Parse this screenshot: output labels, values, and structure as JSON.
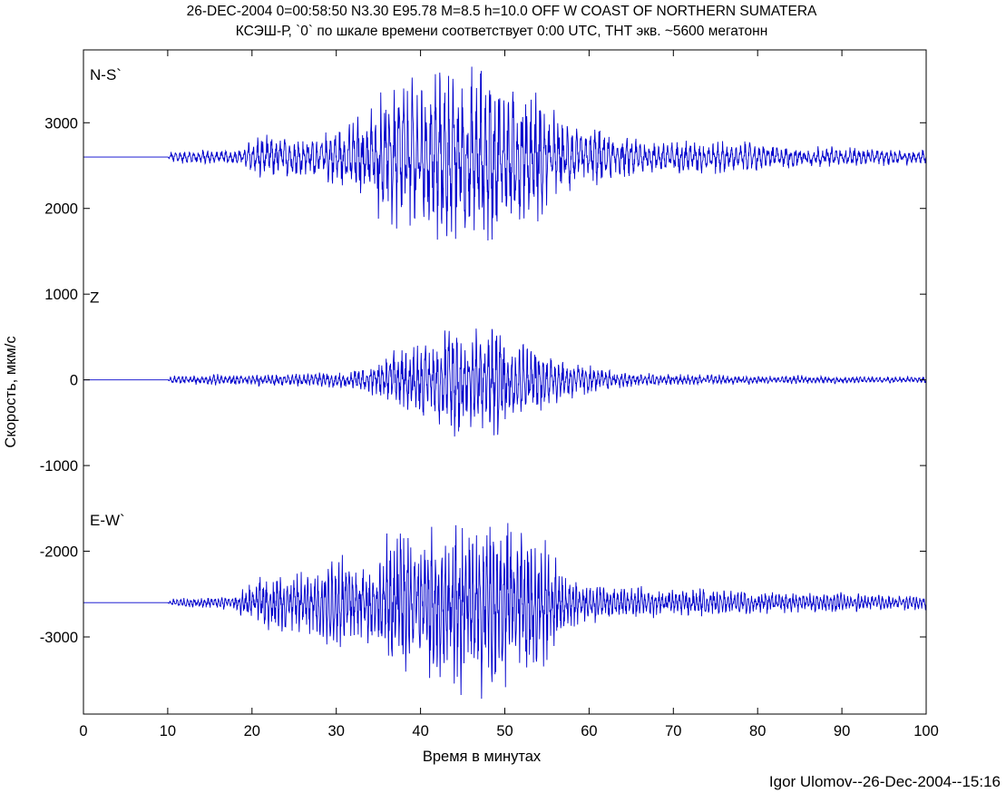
{
  "chart_data": {
    "type": "line",
    "title": "26-DEC-2004 0=00:58:50 N3.30 E95.78 M=8.5 h=10.0 OFF W COAST OF NORTHERN SUMATERA",
    "subtitle": "КСЭШ-Р, `0` по шкале времени соответствует 0:00 UTC, ТНТ экв. ~5600 мегатонн",
    "xlabel": "Время в минутах",
    "ylabel": "Скорость, мкм/с",
    "credit": "Igor Ulomov--26-Dec-2004--15:16",
    "xlim": [
      0,
      100
    ],
    "ylim": [
      -3900,
      3850
    ],
    "xticks": [
      0,
      10,
      20,
      30,
      40,
      50,
      60,
      70,
      80,
      90,
      100
    ],
    "yticks": [
      -3000,
      -2000,
      -1000,
      0,
      1000,
      2000,
      3000
    ],
    "grid": false,
    "line_color": "#0000cc",
    "series": [
      {
        "name": "N-S`",
        "offset": 2600,
        "envelope_minutes": [
          0,
          10,
          10.5,
          18,
          19,
          21,
          24,
          28,
          31,
          33,
          34.5,
          36,
          37,
          38,
          41,
          43,
          44,
          46,
          48,
          49,
          51,
          52,
          54,
          55,
          57,
          60,
          61,
          62,
          65,
          70,
          75,
          80,
          85,
          90,
          95,
          100
        ],
        "envelope_amplitude": [
          0,
          0,
          90,
          100,
          180,
          320,
          280,
          320,
          470,
          580,
          760,
          930,
          1090,
          1140,
          1100,
          1250,
          1300,
          1200,
          1260,
          1150,
          1050,
          950,
          860,
          820,
          520,
          330,
          450,
          300,
          270,
          230,
          220,
          200,
          150,
          140,
          120,
          110
        ]
      },
      {
        "name": "Z",
        "offset": 0,
        "envelope_minutes": [
          0,
          10,
          10.5,
          20,
          25,
          30,
          33,
          34,
          35,
          36,
          37,
          38,
          39,
          41,
          42,
          43,
          44,
          46,
          48,
          49,
          50,
          51,
          52,
          54,
          55,
          56,
          58,
          60,
          62,
          65,
          70,
          80,
          90,
          100
        ],
        "envelope_amplitude": [
          0,
          0,
          60,
          80,
          90,
          120,
          180,
          200,
          270,
          340,
          400,
          430,
          470,
          520,
          600,
          800,
          850,
          700,
          860,
          900,
          700,
          640,
          530,
          460,
          400,
          330,
          270,
          210,
          150,
          110,
          80,
          60,
          50,
          40
        ]
      },
      {
        "name": "E-W`",
        "offset": -2600,
        "envelope_minutes": [
          0,
          10,
          10.5,
          18,
          19.5,
          21,
          24,
          27,
          29,
          30,
          33,
          35,
          36,
          37,
          38,
          40,
          42,
          44,
          46,
          48,
          50,
          51,
          53,
          55,
          57,
          60,
          62,
          65,
          70,
          75,
          80,
          85,
          90,
          95,
          100
        ],
        "envelope_amplitude": [
          0,
          0,
          60,
          90,
          280,
          360,
          400,
          450,
          550,
          700,
          580,
          620,
          880,
          1200,
          1200,
          850,
          1200,
          1200,
          1200,
          1200,
          1200,
          1200,
          1050,
          850,
          440,
          280,
          250,
          240,
          200,
          180,
          160,
          140,
          130,
          110,
          100
        ]
      }
    ]
  }
}
